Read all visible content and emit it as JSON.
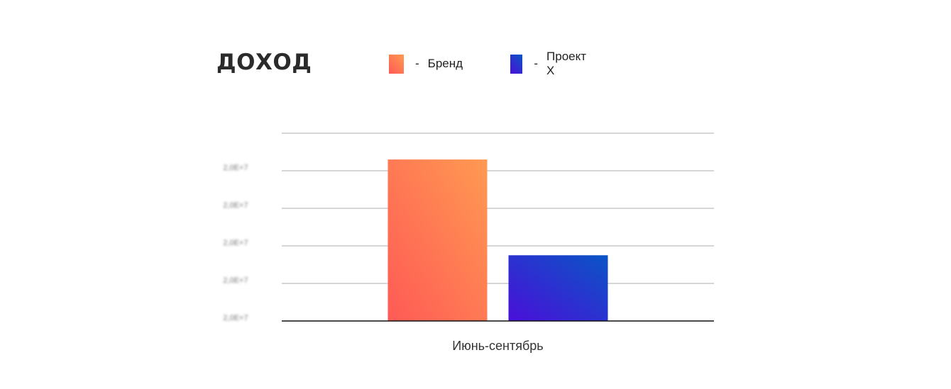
{
  "chart_data": {
    "type": "bar",
    "title": "ДОХОД",
    "categories": [
      "Июнь-сентябрь"
    ],
    "series": [
      {
        "name": "Бренд",
        "values": [
          4.3
        ],
        "color_from": "#ff5a55",
        "color_to": "#ff9a52"
      },
      {
        "name": "Проект X",
        "values": [
          1.75
        ],
        "color_from": "#4a0fd9",
        "color_to": "#0a55c5"
      }
    ],
    "legend_separator": "-",
    "ylim": [
      0,
      5
    ],
    "yticks": [
      "2,0E+7",
      "2,0E+7",
      "2,0E+7",
      "2,0E+7",
      "2,0E+7"
    ],
    "grid": true,
    "legend_position": "top"
  }
}
